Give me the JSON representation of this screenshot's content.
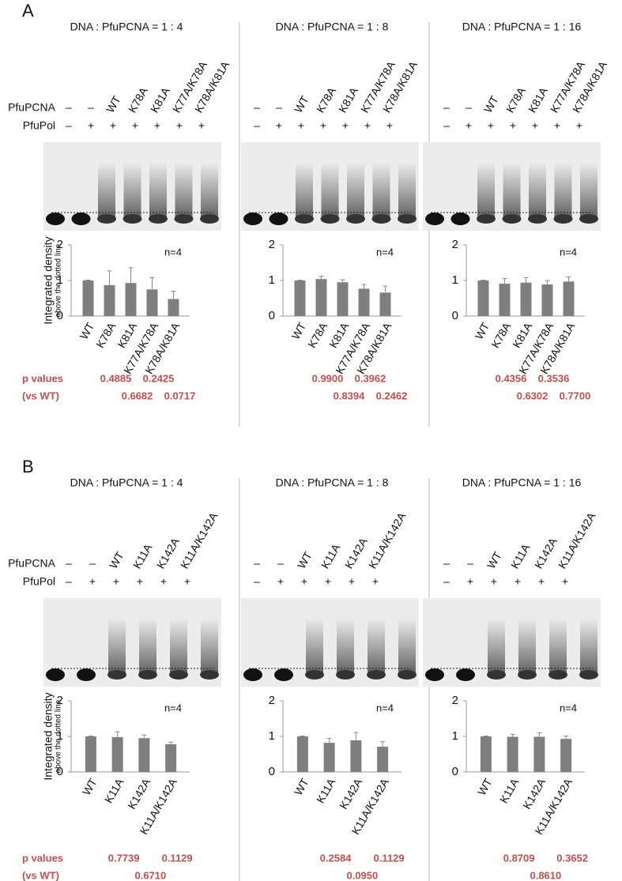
{
  "figure": {
    "panel_labels": [
      "A",
      "B"
    ],
    "row_labels": [
      "PfuPCNA",
      "PfuPol"
    ],
    "p_label": [
      "p values",
      "(vs WT)"
    ]
  },
  "chart_data": [
    {
      "type": "bar",
      "title": "DNA : PfuPCNA = 1 : 4",
      "categories": [
        "WT",
        "K78A",
        "K81A",
        "K77A/K78A",
        "K78A/K81A"
      ],
      "values": [
        1.0,
        0.87,
        0.93,
        0.75,
        0.48
      ],
      "errors": [
        0.01,
        0.4,
        0.43,
        0.33,
        0.22
      ],
      "color": "#7f7f7f",
      "ylim": [
        0,
        2
      ],
      "yticks": [
        0,
        1,
        2
      ],
      "ylabel": "Integrated density",
      "ylabel_sub": "above the dotted line",
      "annotation": "n=4",
      "p_values": [
        "0.4885",
        "0.6682",
        "0.2425",
        "0.0717"
      ],
      "gel_pcna": [
        "–",
        "–",
        "WT",
        "K78A",
        "K81A",
        "K77A/K78A",
        "K78A/K81A"
      ],
      "gel_pol": [
        "–",
        "+",
        "+",
        "+",
        "+",
        "+",
        "+"
      ]
    },
    {
      "type": "bar",
      "title": "DNA : PfuPCNA = 1 : 8",
      "categories": [
        "WT",
        "K78A",
        "K81A",
        "K77A/K78A",
        "K78A/K81A"
      ],
      "values": [
        1.0,
        1.04,
        0.95,
        0.77,
        0.66
      ],
      "errors": [
        0.01,
        0.08,
        0.07,
        0.12,
        0.18
      ],
      "color": "#7f7f7f",
      "ylim": [
        0,
        2
      ],
      "yticks": [
        0,
        1,
        2
      ],
      "annotation": "n=4",
      "p_values": [
        "0.9900",
        "0.8394",
        "0.3962",
        "0.2462"
      ],
      "gel_pcna": [
        "–",
        "–",
        "WT",
        "K78A",
        "K81A",
        "K77A/K78A",
        "K78A/K81A"
      ],
      "gel_pol": [
        "–",
        "+",
        "+",
        "+",
        "+",
        "+",
        "+"
      ]
    },
    {
      "type": "bar",
      "title": "DNA : PfuPCNA = 1 : 16",
      "categories": [
        "WT",
        "K78A",
        "K81A",
        "K77A/K78A",
        "K78A/K81A"
      ],
      "values": [
        1.0,
        0.91,
        0.94,
        0.89,
        0.97
      ],
      "errors": [
        0.01,
        0.15,
        0.14,
        0.11,
        0.13
      ],
      "color": "#7f7f7f",
      "ylim": [
        0,
        2
      ],
      "yticks": [
        0,
        1,
        2
      ],
      "annotation": "n=4",
      "p_values": [
        "0.4356",
        "0.6302",
        "0.3536",
        "0.7700"
      ],
      "gel_pcna": [
        "–",
        "–",
        "WT",
        "K78A",
        "K81A",
        "K77A/K78A",
        "K78A/K81A"
      ],
      "gel_pol": [
        "–",
        "+",
        "+",
        "+",
        "+",
        "+",
        "+"
      ]
    },
    {
      "type": "bar",
      "title": "DNA : PfuPCNA = 1 : 4",
      "categories": [
        "WT",
        "K11A",
        "K142A",
        "K11A/K142A"
      ],
      "values": [
        1.0,
        0.98,
        0.95,
        0.78
      ],
      "errors": [
        0.01,
        0.15,
        0.09,
        0.06
      ],
      "color": "#7f7f7f",
      "ylim": [
        0,
        2
      ],
      "yticks": [
        0,
        1,
        2
      ],
      "ylabel": "Integrated density",
      "ylabel_sub": "above the dotted line",
      "annotation": "n=4",
      "p_values": [
        "0.7739",
        "0.6710",
        "0.1129"
      ],
      "gel_pcna": [
        "–",
        "–",
        "WT",
        "K11A",
        "K142A",
        "K11A/K142A"
      ],
      "gel_pol": [
        "–",
        "+",
        "+",
        "+",
        "+",
        "+"
      ]
    },
    {
      "type": "bar",
      "title": "DNA : PfuPCNA = 1 : 8",
      "categories": [
        "WT",
        "K11A",
        "K142A",
        "K11A/K142A"
      ],
      "values": [
        1.0,
        0.82,
        0.89,
        0.71
      ],
      "errors": [
        0.01,
        0.12,
        0.22,
        0.14
      ],
      "color": "#7f7f7f",
      "ylim": [
        0,
        2
      ],
      "yticks": [
        0,
        1,
        2
      ],
      "annotation": "n=4",
      "p_values": [
        "0.2584",
        "0.0950",
        "0.1129"
      ],
      "gel_pcna": [
        "–",
        "–",
        "WT",
        "K11A",
        "K142A",
        "K11A/K142A"
      ],
      "gel_pol": [
        "–",
        "+",
        "+",
        "+",
        "+",
        "+"
      ]
    },
    {
      "type": "bar",
      "title": "DNA : PfuPCNA = 1 : 16",
      "categories": [
        "WT",
        "K11A",
        "K142A",
        "K11A/K142A"
      ],
      "values": [
        1.0,
        0.99,
        0.99,
        0.93
      ],
      "errors": [
        0.01,
        0.07,
        0.11,
        0.08
      ],
      "color": "#7f7f7f",
      "ylim": [
        0,
        2
      ],
      "yticks": [
        0,
        1,
        2
      ],
      "annotation": "n=4",
      "p_values": [
        "0.8709",
        "0.8610",
        "0.3652"
      ],
      "gel_pcna": [
        "–",
        "–",
        "WT",
        "K11A",
        "K142A",
        "K11A/K142A"
      ],
      "gel_pol": [
        "–",
        "+",
        "+",
        "+",
        "+",
        "+"
      ]
    }
  ]
}
